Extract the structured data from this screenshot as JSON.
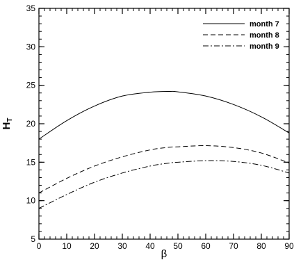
{
  "chart_data": {
    "type": "line",
    "title": "",
    "xlabel": "β",
    "ylabel": "H",
    "ylabel_subscript": "T",
    "xlim": [
      0,
      90
    ],
    "ylim": [
      5,
      35
    ],
    "x_ticks": [
      0,
      10,
      20,
      30,
      40,
      50,
      60,
      70,
      80,
      90
    ],
    "y_ticks": [
      5,
      10,
      15,
      20,
      25,
      30,
      35
    ],
    "x_minor_step": 2,
    "y_minor_step": 1,
    "grid": false,
    "legend_position": "top-right",
    "x": [
      0,
      10,
      20,
      30,
      40,
      47,
      50,
      60,
      70,
      80,
      90
    ],
    "series": [
      {
        "name": "month 7",
        "style": "solid",
        "values": [
          18.0,
          20.4,
          22.3,
          23.6,
          24.1,
          24.2,
          24.15,
          23.6,
          22.5,
          20.9,
          18.8
        ]
      },
      {
        "name": "month 8",
        "style": "dashed",
        "values": [
          11.0,
          12.9,
          14.5,
          15.7,
          16.6,
          16.95,
          17.0,
          17.15,
          16.9,
          16.2,
          14.9
        ]
      },
      {
        "name": "month 9",
        "style": "dashdot",
        "values": [
          9.0,
          10.8,
          12.4,
          13.6,
          14.5,
          14.9,
          15.0,
          15.2,
          15.1,
          14.6,
          13.6
        ]
      }
    ]
  }
}
